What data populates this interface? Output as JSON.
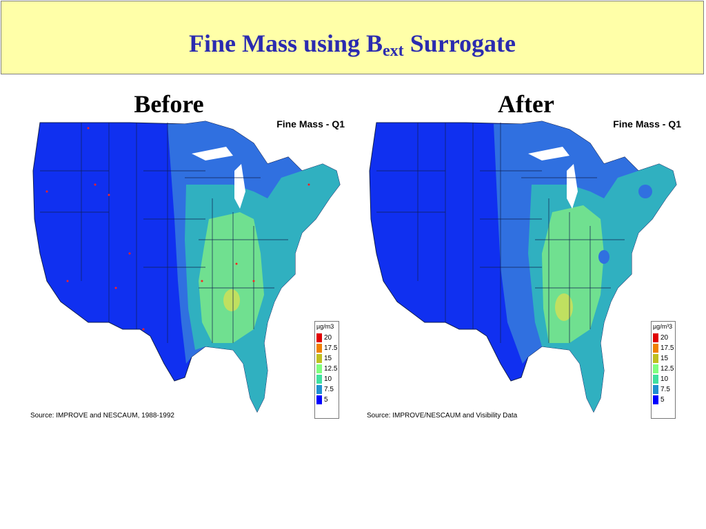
{
  "slide": {
    "title_main": "Fine Mass using B",
    "title_sub": "ext",
    "title_end": " Surrogate"
  },
  "panels": [
    {
      "label": "Before",
      "map_title": "Fine Mass - Q1",
      "source": "Source: IMPROVE and NESCAUM, 1988-1992",
      "legend_unit": "µg/m3"
    },
    {
      "label": "After",
      "map_title": "Fine Mass - Q1",
      "source": "Source: IMPROVE/NESCAUM and Visibility Data",
      "legend_unit": "µg/m³3"
    }
  ],
  "legend": {
    "levels": [
      "20",
      "17.5",
      "15",
      "12.5",
      "10",
      "7.5",
      "5"
    ],
    "colors": [
      "#e00000",
      "#f08000",
      "#c0c020",
      "#80ff80",
      "#40e0a0",
      "#2090d0",
      "#0000ff"
    ]
  },
  "map_colors": {
    "low": "#1030f0",
    "mid": "#3070e0",
    "teal": "#30b0c0",
    "green": "#70e090",
    "yellow": "#c0e060",
    "water": "#ffffff",
    "border": "#102050"
  }
}
